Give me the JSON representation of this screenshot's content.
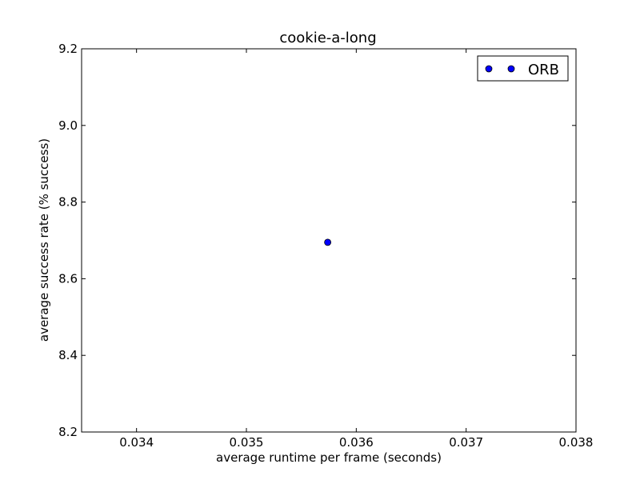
{
  "chart_data": {
    "type": "scatter",
    "title": "cookie-a-long",
    "xlabel": "average runtime per frame (seconds)",
    "ylabel": "average success rate (% success)",
    "xlim": [
      0.0335,
      0.038
    ],
    "ylim": [
      8.2,
      9.2
    ],
    "x_ticks": [
      0.034,
      0.035,
      0.036,
      0.037,
      0.038
    ],
    "x_tick_labels": [
      "0.034",
      "0.035",
      "0.036",
      "0.037",
      "0.038"
    ],
    "y_ticks": [
      8.2,
      8.4,
      8.6,
      8.8,
      9.0,
      9.2
    ],
    "y_tick_labels": [
      "8.2",
      "8.4",
      "8.6",
      "8.8",
      "9.0",
      "9.2"
    ],
    "grid": false,
    "legend_position": "top-right",
    "series": [
      {
        "name": "ORB",
        "color": "#0000ff",
        "marker": "circle",
        "points": [
          {
            "x": 0.03574,
            "y": 8.695
          }
        ]
      }
    ]
  }
}
